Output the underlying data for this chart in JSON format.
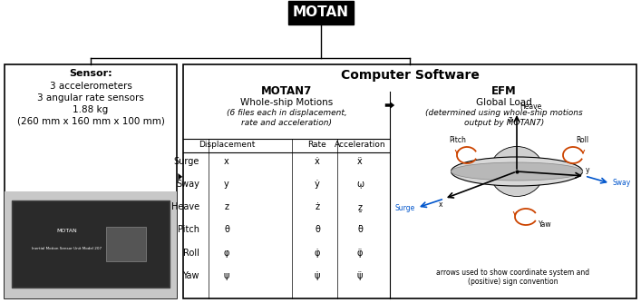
{
  "title": "MOTAN",
  "bg_color": "#ffffff",
  "sensor_title": "Sensor:",
  "sensor_lines": [
    "3 accelerometers",
    "3 angular rate sensors",
    "1.88 kg",
    "(260 mm x 160 mm x 100 mm)"
  ],
  "comp_software_title": "Computer Software",
  "motan7_title": "MOTAN7",
  "motan7_sub": "Whole-ship Motions",
  "motan7_italic": "(6 files each in displacement,\nrate and acceleration)",
  "efm_title": "EFM",
  "efm_sub": "Global Load",
  "efm_italic": "(determined using whole-ship motions\noutput by MOTAN7)",
  "table_col_headers": [
    "Displacement",
    "Rate",
    "Acceleration"
  ],
  "row_labels": [
    "Surge",
    "Sway",
    "Heave",
    "Pitch",
    "Roll",
    "Yaw"
  ],
  "disp_syms": [
    "x",
    "y",
    "z",
    "θ",
    "φ",
    "ψ"
  ],
  "rate_syms": [
    "ẋ",
    "ẏ",
    "ż",
    "θ̇",
    "φ̇",
    "ψ̇"
  ],
  "accel_syms": [
    "ẍ",
    "ῳ",
    "ẕ",
    "θ̈",
    "φ̈",
    "ψ̈"
  ],
  "caption": "arrows used to show coordinate system and\n(positive) sign convention",
  "orange": "#cc4400",
  "blue": "#0055cc",
  "black": "#000000",
  "gray_box": "#cccccc",
  "dark_device": "#2a2a2a"
}
